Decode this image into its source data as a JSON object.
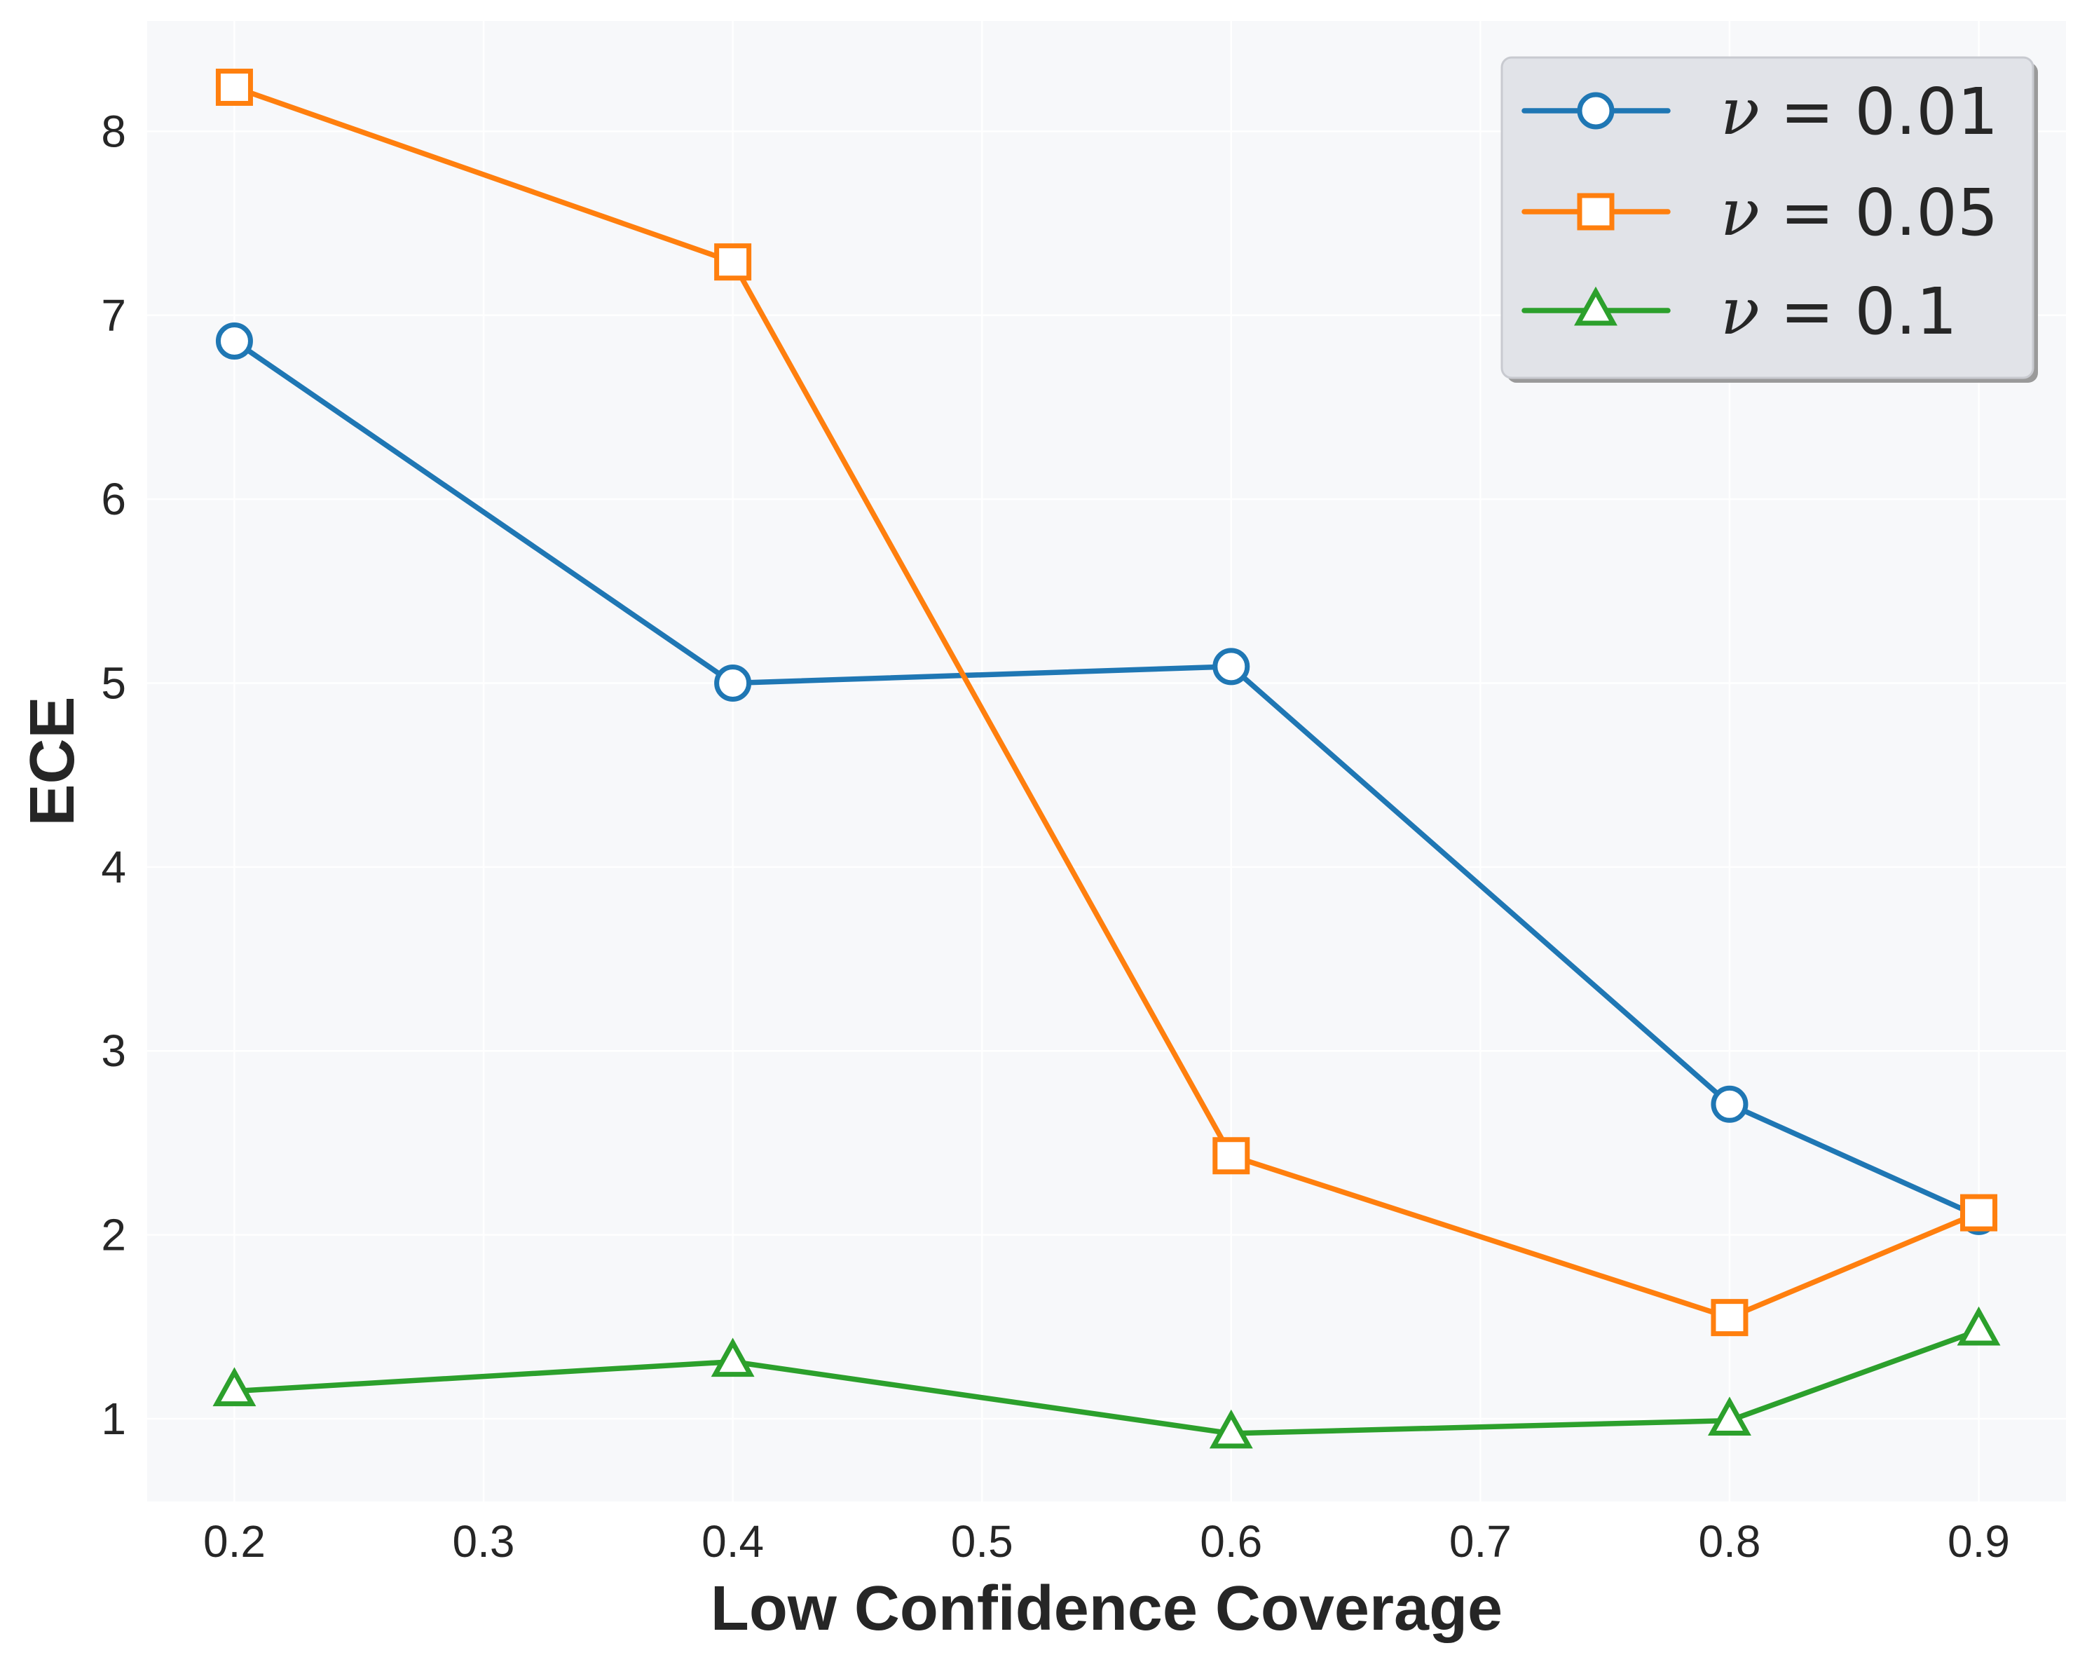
{
  "chart_data": {
    "type": "line",
    "title": "",
    "xlabel": "Low Confidence Coverage",
    "ylabel": "ECE",
    "x": [
      0.2,
      0.4,
      0.6,
      0.8,
      0.9
    ],
    "xlim": [
      0.165,
      0.935
    ],
    "ylim": [
      0.55,
      8.6
    ],
    "xticks": [
      0.2,
      0.3,
      0.4,
      0.5,
      0.6,
      0.7,
      0.8,
      0.9
    ],
    "xtick_labels": [
      "0.2",
      "0.3",
      "0.4",
      "0.5",
      "0.6",
      "0.7",
      "0.8",
      "0.9"
    ],
    "yticks": [
      1,
      2,
      3,
      4,
      5,
      6,
      7,
      8
    ],
    "ytick_labels": [
      "1",
      "2",
      "3",
      "4",
      "5",
      "6",
      "7",
      "8"
    ],
    "grid": true,
    "legend_position": "top-right",
    "series": [
      {
        "name": "ν = 0.01",
        "symbol": "ν",
        "value_text": " = 0.01",
        "color": "#1f77b4",
        "marker": "circle",
        "values": [
          6.86,
          5.0,
          5.09,
          2.71,
          2.1
        ]
      },
      {
        "name": "ν = 0.05",
        "symbol": "ν",
        "value_text": " = 0.05",
        "color": "#ff7f0e",
        "marker": "square",
        "values": [
          8.24,
          7.29,
          2.43,
          1.55,
          2.12
        ]
      },
      {
        "name": "ν = 0.1",
        "symbol": "ν",
        "value_text": " = 0.1",
        "color": "#2ca02c",
        "marker": "triangle",
        "values": [
          1.15,
          1.31,
          0.92,
          0.99,
          1.48
        ]
      }
    ]
  },
  "colors": {
    "plot_background": "#f7f8fa",
    "grid": "#ffffff",
    "legend_background": "#e1e3e8"
  }
}
